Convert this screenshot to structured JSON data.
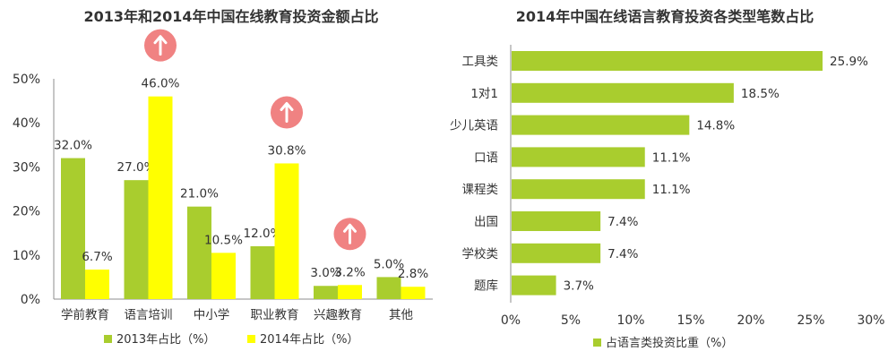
{
  "colors": {
    "green": "#a9cd2e",
    "yellow": "#ffff00",
    "arrow_badge": "#f08282",
    "axis": "#8c8c8c"
  },
  "chart_data": [
    {
      "type": "bar",
      "title": "2013年和2014年中国在线教育投资金额占比",
      "categories": [
        "学前教育",
        "语言培训",
        "中小学",
        "职业教育",
        "兴趣教育",
        "其他"
      ],
      "series": [
        {
          "name": "2013年占比（%）",
          "values": [
            32.0,
            27.0,
            21.0,
            12.0,
            3.0,
            5.0
          ],
          "labels": [
            "32.0%",
            "27.0%",
            "21.0%",
            "12.0%",
            "3.0%",
            "5.0%"
          ]
        },
        {
          "name": "2014年占比（%）",
          "values": [
            6.7,
            46.0,
            10.5,
            30.8,
            3.2,
            2.8
          ],
          "labels": [
            "6.7%",
            "46.0%",
            "10.5%",
            "30.8%",
            "3.2%",
            "2.8%"
          ]
        }
      ],
      "ylim": [
        0,
        50
      ],
      "yticks": [
        "0%",
        "10%",
        "20%",
        "30%",
        "40%",
        "50%"
      ],
      "up_arrow_categories": [
        "语言培训",
        "职业教育",
        "兴趣教育"
      ],
      "legend": "bottom",
      "grid": false
    },
    {
      "type": "bar",
      "orientation": "horizontal",
      "title": "2014年中国在线语言教育投资各类型笔数占比",
      "categories": [
        "工具类",
        "1对1",
        "少儿英语",
        "口语",
        "课程类",
        "出国",
        "学校类",
        "题库"
      ],
      "series": [
        {
          "name": "占语言类投资比重（%）",
          "values": [
            25.9,
            18.5,
            14.8,
            11.1,
            11.1,
            7.4,
            7.4,
            3.7
          ],
          "labels": [
            "25.9%",
            "18.5%",
            "14.8%",
            "11.1%",
            "11.1%",
            "7.4%",
            "7.4%",
            "3.7%"
          ]
        }
      ],
      "xlim": [
        0,
        30
      ],
      "xticks": [
        "0%",
        "5%",
        "10%",
        "15%",
        "20%",
        "25%",
        "30%"
      ],
      "legend": "bottom",
      "grid": false
    }
  ]
}
